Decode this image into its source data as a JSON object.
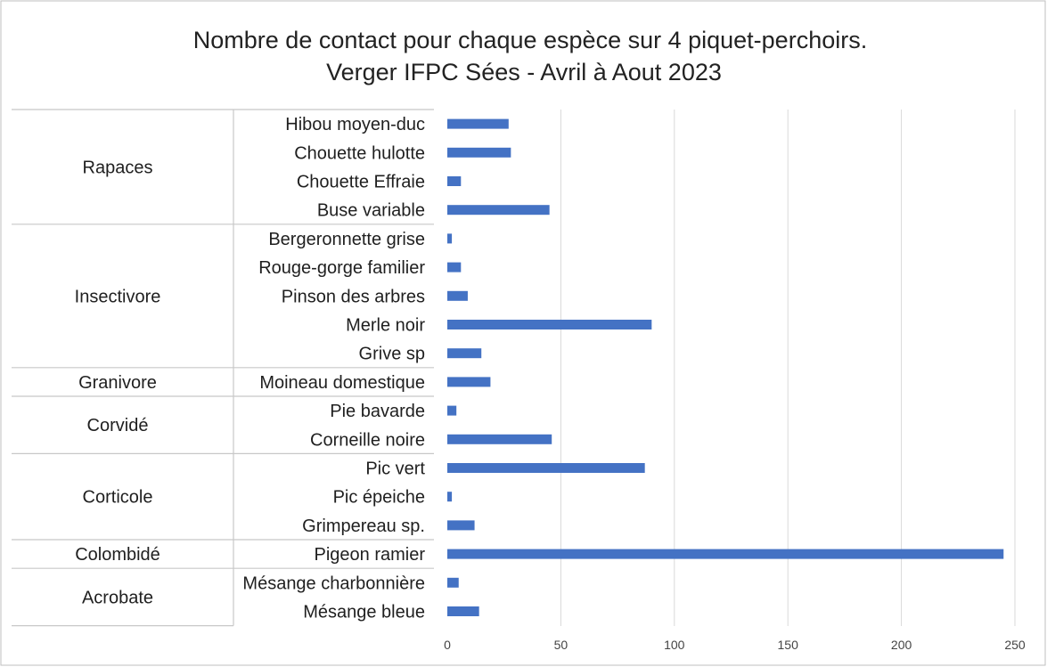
{
  "chart_data": {
    "type": "bar",
    "orientation": "horizontal",
    "title": "Nombre de contact pour chaque espèce sur 4 piquet-perchoirs.",
    "subtitle": "Verger IFPC Sées - Avril à Aout 2023",
    "xlim": [
      0,
      250
    ],
    "x_ticks": [
      0,
      50,
      100,
      150,
      200,
      250
    ],
    "grid": true,
    "bar_color": "#4472c4",
    "groups": [
      {
        "name": "Rapaces",
        "categories": [
          "Hibou moyen-duc",
          "Chouette hulotte",
          "Chouette Effraie",
          "Buse variable"
        ],
        "values": [
          27,
          28,
          6,
          45
        ]
      },
      {
        "name": "Insectivore",
        "categories": [
          "Bergeronnette grise",
          "Rouge-gorge familier",
          "Pinson des arbres",
          "Merle noir",
          "Grive sp"
        ],
        "values": [
          2,
          6,
          9,
          90,
          15
        ]
      },
      {
        "name": "Granivore",
        "categories": [
          "Moineau domestique"
        ],
        "values": [
          19
        ]
      },
      {
        "name": "Corvidé",
        "categories": [
          "Pie bavarde",
          "Corneille noire"
        ],
        "values": [
          4,
          46
        ]
      },
      {
        "name": "Corticole",
        "categories": [
          "Pic vert",
          "Pic épeiche ",
          "Grimpereau sp."
        ],
        "values": [
          87,
          2,
          12
        ]
      },
      {
        "name": "Colombidé",
        "categories": [
          "Pigeon ramier"
        ],
        "values": [
          245
        ]
      },
      {
        "name": "Acrobate",
        "categories": [
          "Mésange charbonnière",
          "Mésange bleue"
        ],
        "values": [
          5,
          14
        ]
      }
    ]
  }
}
